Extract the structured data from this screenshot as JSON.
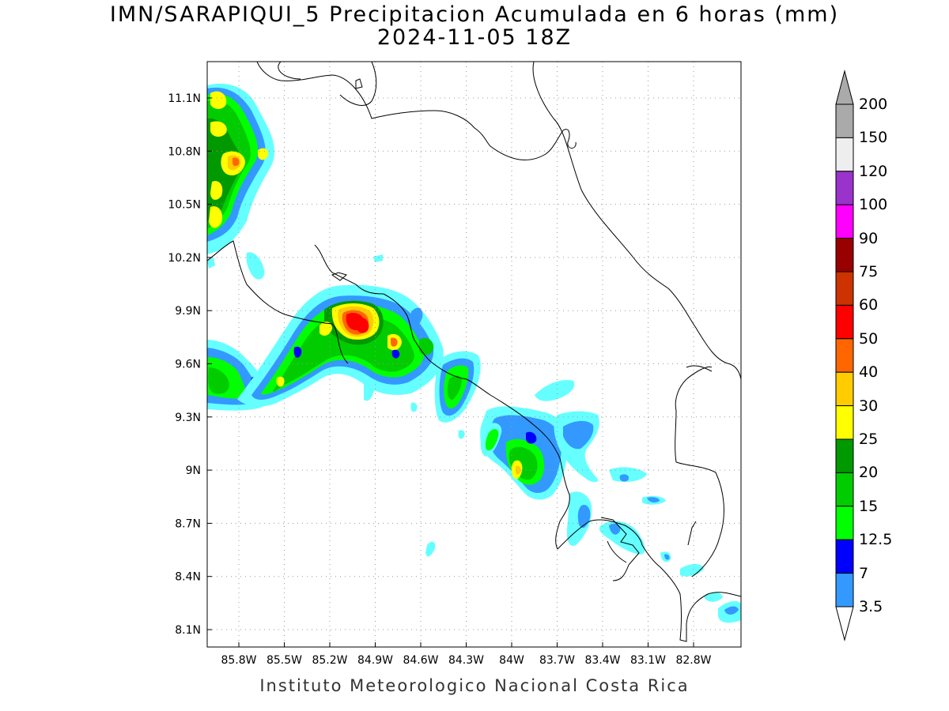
{
  "title": {
    "line1": "IMN/SARAPIQUI_5 Precipitacion Acumulada en 6 horas (mm)",
    "line2": "2024-11-05 18Z"
  },
  "footer": "Instituto Meteorologico Nacional Costa Rica",
  "map": {
    "projection": "latitude-longitude",
    "grid": "dotted",
    "lat_ticks": [
      "11.1N",
      "10.8N",
      "10.5N",
      "10.2N",
      "9.9N",
      "9.6N",
      "9.3N",
      "9N",
      "8.7N",
      "8.4N",
      "8.1N"
    ],
    "lon_ticks": [
      "85.8W",
      "85.5W",
      "85.2W",
      "84.9W",
      "84.6W",
      "84.3W",
      "84W",
      "83.7W",
      "83.4W",
      "83.1W",
      "82.8W"
    ]
  },
  "colorbar": {
    "units": "mm",
    "levels": [
      {
        "label": "3.5",
        "color": "#66ffff"
      },
      {
        "label": "7",
        "color": "#3399ff"
      },
      {
        "label": "12.5",
        "color": "#0000ff"
      },
      {
        "label": "15",
        "color": "#00ff00"
      },
      {
        "label": "20",
        "color": "#00cc00"
      },
      {
        "label": "25",
        "color": "#009900"
      },
      {
        "label": "30",
        "color": "#ffff00"
      },
      {
        "label": "40",
        "color": "#ffcc00"
      },
      {
        "label": "50",
        "color": "#ff6600"
      },
      {
        "label": "60",
        "color": "#ff0000"
      },
      {
        "label": "75",
        "color": "#cc3300"
      },
      {
        "label": "90",
        "color": "#990000"
      },
      {
        "label": "100",
        "color": "#ff00ff"
      },
      {
        "label": "120",
        "color": "#9933cc"
      },
      {
        "label": "150",
        "color": "#eeeeee"
      },
      {
        "label": "200",
        "color": "#aaaaaa"
      }
    ]
  }
}
